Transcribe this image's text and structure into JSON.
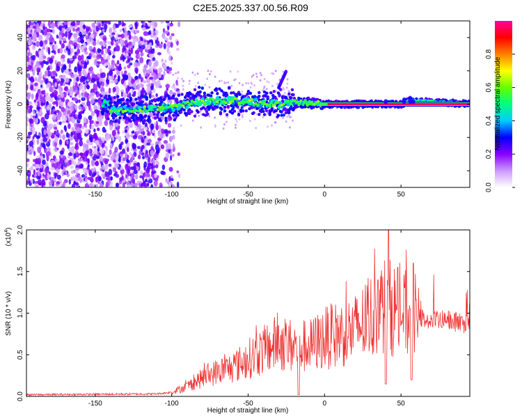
{
  "title": "C2E5.2025.337.00.56.R09",
  "chart_data": [
    {
      "type": "heatmap",
      "xlabel": "Height of straight line (km)",
      "ylabel": "Frequency (Hz)",
      "xlim": [
        -195,
        95
      ],
      "ylim": [
        -50,
        50
      ],
      "x_ticks": [
        -150,
        -100,
        -50,
        0,
        50
      ],
      "y_ticks": [
        -40,
        -20,
        0,
        20,
        40
      ],
      "colorbar": {
        "label": "Normalized spectral amplitude",
        "range": [
          0,
          1
        ],
        "ticks": [
          "0.0",
          "0.2",
          "0.4",
          "0.6",
          "0.8"
        ],
        "colors": [
          "#ffffff",
          "#cc99ff",
          "#8800ff",
          "#0000ff",
          "#00ccff",
          "#00ff80",
          "#66ff00",
          "#ffff00",
          "#ff8000",
          "#ff0000",
          "#ff0099"
        ]
      },
      "ridge": [
        {
          "x": -140,
          "f": -4
        },
        {
          "x": -120,
          "f": -3
        },
        {
          "x": -100,
          "f": -2
        },
        {
          "x": -90,
          "f": 0
        },
        {
          "x": -80,
          "f": 2
        },
        {
          "x": -60,
          "f": 2
        },
        {
          "x": -45,
          "f": 1
        },
        {
          "x": -30,
          "f": 0
        },
        {
          "x": -15,
          "f": 1
        },
        {
          "x": 0,
          "f": 0
        },
        {
          "x": 10,
          "f": 0
        },
        {
          "x": 50,
          "f": 0
        },
        {
          "x": 55,
          "f": 2
        },
        {
          "x": 95,
          "f": 0
        }
      ],
      "side_branch": [
        {
          "x": -30,
          "f": 10
        },
        {
          "x": -25,
          "f": 20
        }
      ]
    },
    {
      "type": "line",
      "xlabel": "Height of straight line (km)",
      "ylabel": "SNR (10 * v/v)",
      "y_multiplier": "(x10",
      "y_multiplier_exp": "4",
      "xlim": [
        -195,
        95
      ],
      "ylim": [
        0,
        2.0
      ],
      "x_ticks": [
        -150,
        -100,
        -50,
        0,
        50
      ],
      "y_ticks": [
        "0.0",
        "0.5",
        "1.0",
        "1.5",
        "2.0"
      ],
      "color": "#ee3333",
      "envelope": [
        {
          "x": -195,
          "y": 0.02
        },
        {
          "x": -110,
          "y": 0.03
        },
        {
          "x": -100,
          "y": 0.05
        },
        {
          "x": -90,
          "y": 0.12
        },
        {
          "x": -80,
          "y": 0.22
        },
        {
          "x": -70,
          "y": 0.3
        },
        {
          "x": -60,
          "y": 0.35
        },
        {
          "x": -50,
          "y": 0.45
        },
        {
          "x": -40,
          "y": 0.55
        },
        {
          "x": -30,
          "y": 0.65
        },
        {
          "x": -20,
          "y": 0.6
        },
        {
          "x": -10,
          "y": 0.6
        },
        {
          "x": 0,
          "y": 0.7
        },
        {
          "x": 10,
          "y": 0.75
        },
        {
          "x": 20,
          "y": 0.8
        },
        {
          "x": 30,
          "y": 0.95
        },
        {
          "x": 40,
          "y": 1.1
        },
        {
          "x": 50,
          "y": 1.0
        },
        {
          "x": 60,
          "y": 0.95
        },
        {
          "x": 70,
          "y": 0.9
        },
        {
          "x": 80,
          "y": 0.92
        },
        {
          "x": 95,
          "y": 0.85
        }
      ],
      "peaks": [
        {
          "x": 42,
          "y": 2.0
        },
        {
          "x": 48,
          "y": 1.55
        },
        {
          "x": 58,
          "y": 1.6
        },
        {
          "x": -30,
          "y": 0.85
        },
        {
          "x": 22,
          "y": 1.0
        },
        {
          "x": 35,
          "y": 1.4
        }
      ],
      "dips": [
        {
          "x": -17,
          "y": 0.02
        },
        {
          "x": 40,
          "y": 0.15
        },
        {
          "x": 57,
          "y": 0.2
        }
      ]
    }
  ]
}
